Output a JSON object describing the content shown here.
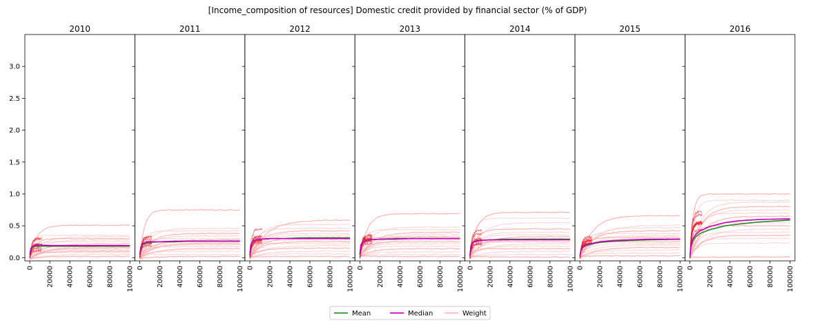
{
  "chart_data": {
    "type": "line",
    "title": "[Income_composition of resources] Domestic credit provided by financial sector (% of GDP)",
    "panels": [
      "2010",
      "2011",
      "2012",
      "2013",
      "2014",
      "2015",
      "2016"
    ],
    "xlim": [
      0,
      100000
    ],
    "x_ticks": [
      0,
      20000,
      40000,
      60000,
      80000,
      100000
    ],
    "x_tick_labels": [
      "0",
      "20000",
      "40000",
      "60000",
      "80000",
      "100000"
    ],
    "ylim": [
      -0.05,
      3.5
    ],
    "y_ticks": [
      0.0,
      0.5,
      1.0,
      1.5,
      2.0,
      2.5,
      3.0
    ],
    "y_tick_labels": [
      "0.0",
      "0.5",
      "1.0",
      "1.5",
      "2.0",
      "2.5",
      "3.0"
    ],
    "grid": false,
    "legend_position": "bottom-center",
    "colors": {
      "mean": "#228b22",
      "median": "#c000c0",
      "weight": "#ff9999",
      "weight_dark": "#e8000f"
    },
    "legend": [
      {
        "name": "Mean",
        "color": "#228b22"
      },
      {
        "name": "Median",
        "color": "#c000c0"
      },
      {
        "name": "Weight",
        "color": "#ffb3b3"
      }
    ],
    "x": [
      0,
      1000,
      3000,
      6000,
      10000,
      20000,
      35000,
      50000,
      70000,
      100000
    ],
    "mean": [
      [
        0.05,
        0.13,
        0.17,
        0.18,
        0.18,
        0.18,
        0.18,
        0.18,
        0.18,
        0.18
      ],
      [
        0.05,
        0.16,
        0.21,
        0.23,
        0.24,
        0.25,
        0.25,
        0.26,
        0.26,
        0.26
      ],
      [
        0.05,
        0.2,
        0.26,
        0.28,
        0.29,
        0.3,
        0.3,
        0.31,
        0.31,
        0.31
      ],
      [
        0.05,
        0.2,
        0.25,
        0.27,
        0.28,
        0.29,
        0.3,
        0.3,
        0.3,
        0.3
      ],
      [
        0.03,
        0.18,
        0.24,
        0.26,
        0.27,
        0.28,
        0.29,
        0.29,
        0.29,
        0.29
      ],
      [
        0.03,
        0.12,
        0.16,
        0.19,
        0.21,
        0.24,
        0.26,
        0.27,
        0.28,
        0.29
      ],
      [
        0.02,
        0.17,
        0.27,
        0.33,
        0.38,
        0.44,
        0.5,
        0.53,
        0.56,
        0.59
      ]
    ],
    "median": [
      [
        0.05,
        0.14,
        0.18,
        0.19,
        0.2,
        0.19,
        0.19,
        0.19,
        0.19,
        0.19
      ],
      [
        0.05,
        0.17,
        0.22,
        0.24,
        0.25,
        0.25,
        0.26,
        0.26,
        0.26,
        0.26
      ],
      [
        0.05,
        0.2,
        0.26,
        0.28,
        0.29,
        0.3,
        0.3,
        0.3,
        0.3,
        0.3
      ],
      [
        0.05,
        0.2,
        0.25,
        0.27,
        0.28,
        0.29,
        0.29,
        0.3,
        0.3,
        0.3
      ],
      [
        0.03,
        0.18,
        0.24,
        0.26,
        0.27,
        0.28,
        0.28,
        0.28,
        0.28,
        0.28
      ],
      [
        0.03,
        0.12,
        0.17,
        0.2,
        0.22,
        0.25,
        0.27,
        0.28,
        0.29,
        0.29
      ],
      [
        0.02,
        0.19,
        0.3,
        0.37,
        0.42,
        0.49,
        0.55,
        0.58,
        0.6,
        0.61
      ]
    ],
    "weight_plateaus": [
      [
        0.51,
        0.35,
        0.33,
        0.3,
        0.28,
        0.25,
        0.22,
        0.2,
        0.18,
        0.16,
        0.14,
        0.12,
        0.1,
        0.08,
        0.05,
        0.02
      ],
      [
        0.75,
        0.46,
        0.42,
        0.38,
        0.34,
        0.3,
        0.28,
        0.26,
        0.24,
        0.22,
        0.2,
        0.17,
        0.14,
        0.1,
        0.05,
        0.02
      ],
      [
        0.59,
        0.52,
        0.46,
        0.42,
        0.38,
        0.35,
        0.32,
        0.3,
        0.28,
        0.25,
        0.22,
        0.19,
        0.15,
        0.1,
        0.06,
        0.02
      ],
      [
        0.69,
        0.48,
        0.44,
        0.4,
        0.37,
        0.34,
        0.32,
        0.3,
        0.28,
        0.25,
        0.22,
        0.18,
        0.14,
        0.09,
        0.05,
        0.02
      ],
      [
        0.71,
        0.62,
        0.55,
        0.45,
        0.4,
        0.36,
        0.33,
        0.3,
        0.28,
        0.25,
        0.22,
        0.18,
        0.14,
        0.1,
        0.05,
        0.01
      ],
      [
        0.66,
        0.51,
        0.47,
        0.42,
        0.38,
        0.35,
        0.32,
        0.3,
        0.28,
        0.25,
        0.22,
        0.2,
        0.16,
        0.12,
        0.07,
        0.03
      ],
      [
        1.0,
        0.9,
        0.87,
        0.8,
        0.75,
        0.7,
        0.65,
        0.6,
        0.55,
        0.5,
        0.45,
        0.4,
        0.35,
        0.3,
        0.23,
        0.01
      ]
    ]
  }
}
